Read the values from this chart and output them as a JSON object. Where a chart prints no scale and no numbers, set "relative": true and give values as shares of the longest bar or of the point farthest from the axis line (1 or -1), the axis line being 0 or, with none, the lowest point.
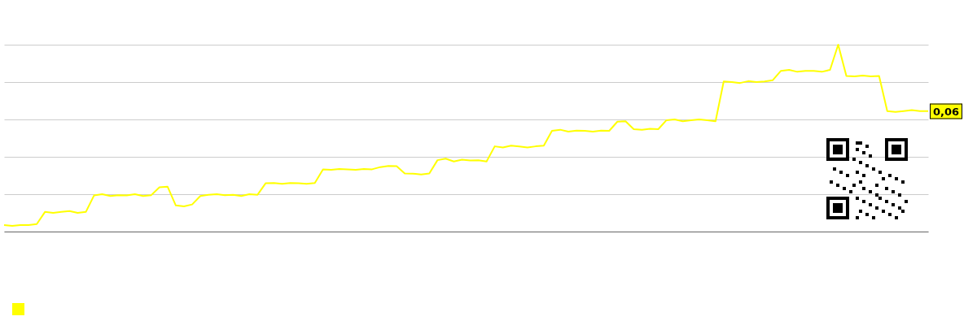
{
  "chart_data": {
    "type": "line",
    "relative": true,
    "grid": "y",
    "categories": [
      null,
      null,
      null,
      null,
      null,
      null,
      null,
      null,
      null,
      null,
      null,
      null,
      null,
      null,
      null,
      null,
      null,
      null,
      null,
      null,
      null,
      null,
      null,
      null,
      null,
      null,
      null,
      null,
      null,
      null,
      null,
      null,
      null,
      null,
      null,
      null,
      null,
      null,
      null,
      null,
      null,
      null,
      null,
      null,
      null,
      null,
      null,
      null,
      null,
      null,
      null,
      null,
      null,
      null,
      null,
      null,
      null,
      null,
      null,
      null,
      null,
      null,
      null,
      null,
      null,
      null,
      null,
      null,
      null,
      null,
      null,
      null,
      null,
      null,
      null,
      null,
      null,
      null,
      null,
      null,
      null,
      null,
      null,
      null,
      null,
      null,
      null,
      null,
      null,
      null,
      null,
      null,
      null,
      null,
      null,
      null,
      null,
      null,
      null,
      null,
      null,
      null,
      null,
      null,
      null,
      null,
      null,
      null,
      null,
      null,
      null,
      null,
      null,
      null
    ],
    "series": [
      {
        "color": "#ffff00",
        "values": [
          0.035,
          0.03,
          0.035,
          0.035,
          0.04,
          0.105,
          0.1,
          0.105,
          0.11,
          0.1,
          0.105,
          0.193,
          0.2,
          0.19,
          0.195,
          0.193,
          0.2,
          0.19,
          0.195,
          0.237,
          0.24,
          0.14,
          0.135,
          0.145,
          0.19,
          0.197,
          0.2,
          0.195,
          0.197,
          0.19,
          0.2,
          0.197,
          0.259,
          0.26,
          0.255,
          0.26,
          0.259,
          0.255,
          0.26,
          0.333,
          0.33,
          0.335,
          0.333,
          0.33,
          0.335,
          0.333,
          0.345,
          0.351,
          0.35,
          0.311,
          0.31,
          0.305,
          0.311,
          0.382,
          0.39,
          0.375,
          0.385,
          0.38,
          0.382,
          0.375,
          0.456,
          0.45,
          0.46,
          0.455,
          0.45,
          0.456,
          0.46,
          0.539,
          0.545,
          0.535,
          0.54,
          0.539,
          0.535,
          0.54,
          0.539,
          0.588,
          0.59,
          0.548,
          0.545,
          0.55,
          0.548,
          0.596,
          0.6,
          0.59,
          0.596,
          0.6,
          0.596,
          0.59,
          0.803,
          0.8,
          0.795,
          0.805,
          0.8,
          0.803,
          0.81,
          0.86,
          0.865,
          0.855,
          0.86,
          0.86,
          0.855,
          0.865,
          1,
          0.833,
          0.83,
          0.835,
          0.83,
          0.833,
          0.645,
          0.64,
          0.645,
          0.65,
          0.645,
          0.645
        ]
      }
    ],
    "annotations": [
      "0,06"
    ]
  }
}
